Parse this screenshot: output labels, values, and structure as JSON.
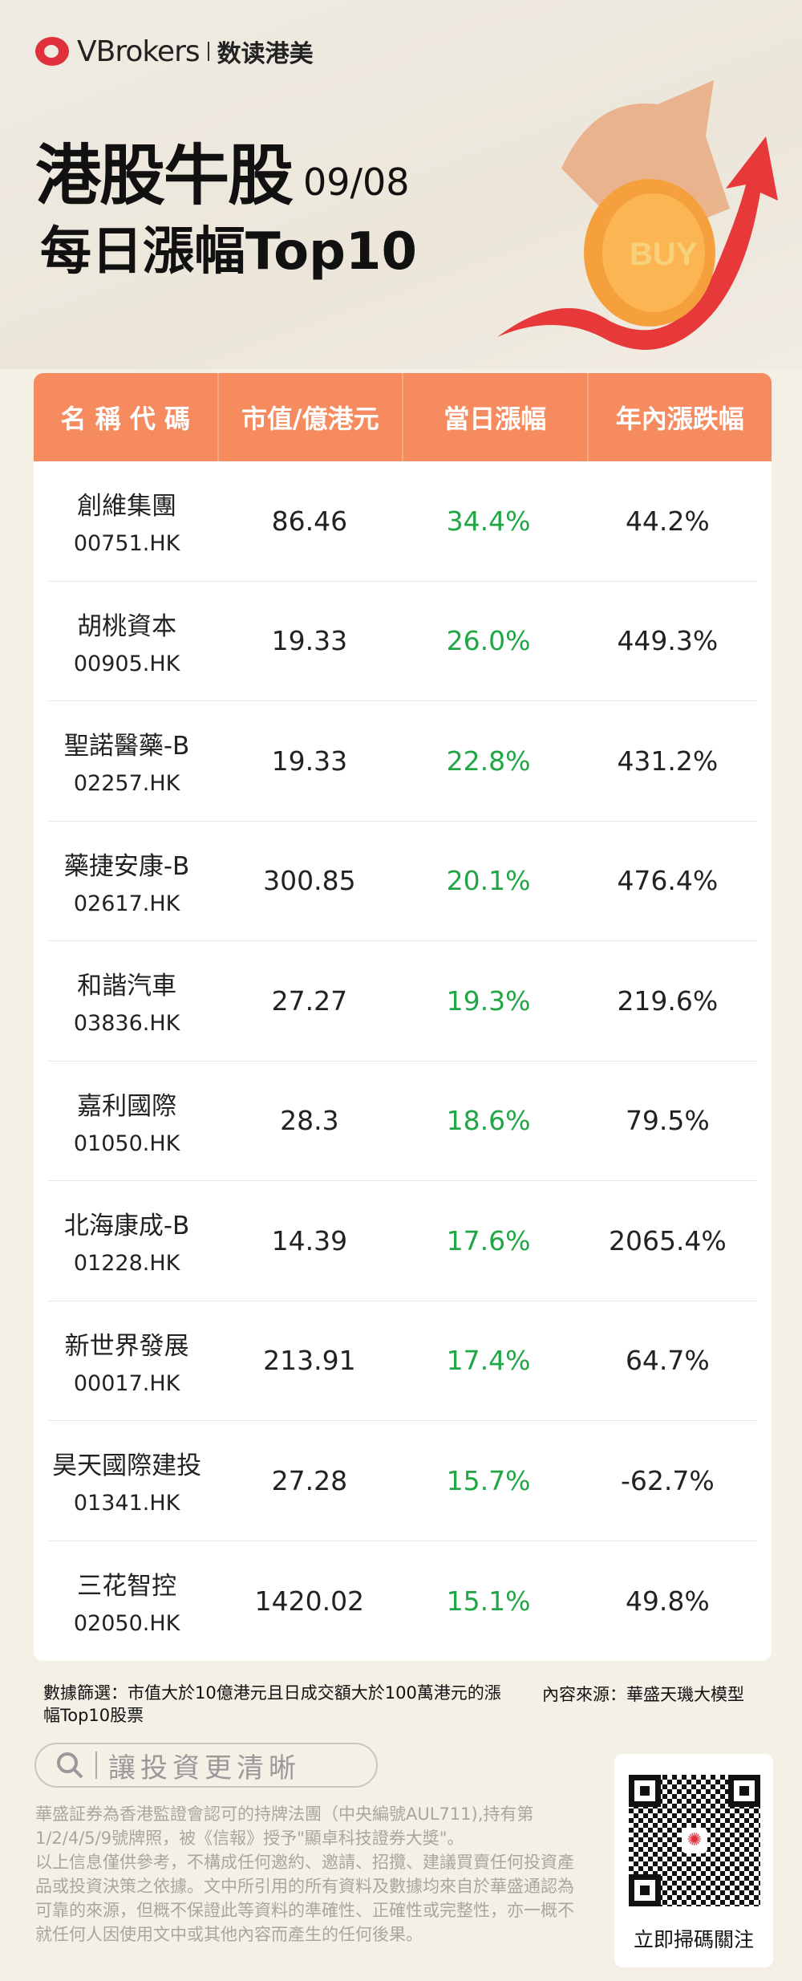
{
  "brand": {
    "name": "VBrokers",
    "sub": "数读港美"
  },
  "header": {
    "title": "港股牛股",
    "date": "09/08",
    "subtitle": "每日漲幅Top10",
    "coin_label": "BUY"
  },
  "colors": {
    "header_bg": "#f58b5f",
    "gain": "#21a646",
    "page_bg": "#f4f0e6"
  },
  "table": {
    "columns": [
      "名 稱 代 碼",
      "市值/億港元",
      "當日漲幅",
      "年內漲跌幅"
    ],
    "rows": [
      {
        "name": "創維集團",
        "code": "00751.HK",
        "mcap": "86.46",
        "day": "34.4%",
        "ytd": "44.2%"
      },
      {
        "name": "胡桃資本",
        "code": "00905.HK",
        "mcap": "19.33",
        "day": "26.0%",
        "ytd": "449.3%"
      },
      {
        "name": "聖諾醫藥-B",
        "code": "02257.HK",
        "mcap": "19.33",
        "day": "22.8%",
        "ytd": "431.2%"
      },
      {
        "name": "藥捷安康-B",
        "code": "02617.HK",
        "mcap": "300.85",
        "day": "20.1%",
        "ytd": "476.4%"
      },
      {
        "name": "和諧汽車",
        "code": "03836.HK",
        "mcap": "27.27",
        "day": "19.3%",
        "ytd": "219.6%"
      },
      {
        "name": "嘉利國際",
        "code": "01050.HK",
        "mcap": "28.3",
        "day": "18.6%",
        "ytd": "79.5%"
      },
      {
        "name": "北海康成-B",
        "code": "01228.HK",
        "mcap": "14.39",
        "day": "17.6%",
        "ytd": "2065.4%"
      },
      {
        "name": "新世界發展",
        "code": "00017.HK",
        "mcap": "213.91",
        "day": "17.4%",
        "ytd": "64.7%"
      },
      {
        "name": "昊天國際建投",
        "code": "01341.HK",
        "mcap": "27.28",
        "day": "15.7%",
        "ytd": "-62.7%"
      },
      {
        "name": "三花智控",
        "code": "02050.HK",
        "mcap": "1420.02",
        "day": "15.1%",
        "ytd": "49.8%"
      }
    ]
  },
  "footer": {
    "filter_note": "數據篩選：市值大於10億港元且日成交額大於100萬港元的漲幅Top10股票",
    "source_note": "內容來源：華盛天璣大模型",
    "search_slogan": "讓投資更清晰",
    "disclaimer_1": "華盛証券為香港監證會認可的持牌法團（中央編號AUL711),持有第1/2/4/5/9號牌照，被《信報》授予\"顯卓科技證券大獎\"。",
    "disclaimer_2": "以上信息僅供參考，不構成任何邀約、邀請、招攬、建議買賣任何投資產品或投資決策之依據。文中所引用的所有資料及數據均來自於華盛通認為可靠的來源，但概不保證此等資料的準確性、正確性或完整性，亦一概不就任何人因使用文中或其他內容而產生的任何後果。",
    "qr_label": "立即掃碼關注"
  }
}
